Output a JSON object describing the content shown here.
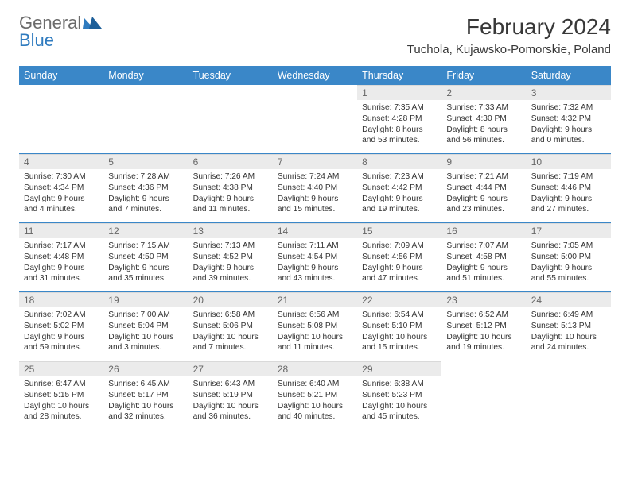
{
  "logo": {
    "general": "General",
    "blue": "Blue"
  },
  "title": "February 2024",
  "location": "Tuchola, Kujawsko-Pomorskie, Poland",
  "colors": {
    "header_bg": "#3a87c8",
    "header_text": "#ffffff",
    "daynum_bg": "#ebebeb",
    "daynum_text": "#666666",
    "body_text": "#333333",
    "logo_gray": "#6b6b6b",
    "logo_blue": "#2f7bbf",
    "border": "#3a87c8"
  },
  "day_names": [
    "Sunday",
    "Monday",
    "Tuesday",
    "Wednesday",
    "Thursday",
    "Friday",
    "Saturday"
  ],
  "weeks": [
    [
      null,
      null,
      null,
      null,
      {
        "n": "1",
        "sr": "7:35 AM",
        "ss": "4:28 PM",
        "dl": "8 hours and 53 minutes."
      },
      {
        "n": "2",
        "sr": "7:33 AM",
        "ss": "4:30 PM",
        "dl": "8 hours and 56 minutes."
      },
      {
        "n": "3",
        "sr": "7:32 AM",
        "ss": "4:32 PM",
        "dl": "9 hours and 0 minutes."
      }
    ],
    [
      {
        "n": "4",
        "sr": "7:30 AM",
        "ss": "4:34 PM",
        "dl": "9 hours and 4 minutes."
      },
      {
        "n": "5",
        "sr": "7:28 AM",
        "ss": "4:36 PM",
        "dl": "9 hours and 7 minutes."
      },
      {
        "n": "6",
        "sr": "7:26 AM",
        "ss": "4:38 PM",
        "dl": "9 hours and 11 minutes."
      },
      {
        "n": "7",
        "sr": "7:24 AM",
        "ss": "4:40 PM",
        "dl": "9 hours and 15 minutes."
      },
      {
        "n": "8",
        "sr": "7:23 AM",
        "ss": "4:42 PM",
        "dl": "9 hours and 19 minutes."
      },
      {
        "n": "9",
        "sr": "7:21 AM",
        "ss": "4:44 PM",
        "dl": "9 hours and 23 minutes."
      },
      {
        "n": "10",
        "sr": "7:19 AM",
        "ss": "4:46 PM",
        "dl": "9 hours and 27 minutes."
      }
    ],
    [
      {
        "n": "11",
        "sr": "7:17 AM",
        "ss": "4:48 PM",
        "dl": "9 hours and 31 minutes."
      },
      {
        "n": "12",
        "sr": "7:15 AM",
        "ss": "4:50 PM",
        "dl": "9 hours and 35 minutes."
      },
      {
        "n": "13",
        "sr": "7:13 AM",
        "ss": "4:52 PM",
        "dl": "9 hours and 39 minutes."
      },
      {
        "n": "14",
        "sr": "7:11 AM",
        "ss": "4:54 PM",
        "dl": "9 hours and 43 minutes."
      },
      {
        "n": "15",
        "sr": "7:09 AM",
        "ss": "4:56 PM",
        "dl": "9 hours and 47 minutes."
      },
      {
        "n": "16",
        "sr": "7:07 AM",
        "ss": "4:58 PM",
        "dl": "9 hours and 51 minutes."
      },
      {
        "n": "17",
        "sr": "7:05 AM",
        "ss": "5:00 PM",
        "dl": "9 hours and 55 minutes."
      }
    ],
    [
      {
        "n": "18",
        "sr": "7:02 AM",
        "ss": "5:02 PM",
        "dl": "9 hours and 59 minutes."
      },
      {
        "n": "19",
        "sr": "7:00 AM",
        "ss": "5:04 PM",
        "dl": "10 hours and 3 minutes."
      },
      {
        "n": "20",
        "sr": "6:58 AM",
        "ss": "5:06 PM",
        "dl": "10 hours and 7 minutes."
      },
      {
        "n": "21",
        "sr": "6:56 AM",
        "ss": "5:08 PM",
        "dl": "10 hours and 11 minutes."
      },
      {
        "n": "22",
        "sr": "6:54 AM",
        "ss": "5:10 PM",
        "dl": "10 hours and 15 minutes."
      },
      {
        "n": "23",
        "sr": "6:52 AM",
        "ss": "5:12 PM",
        "dl": "10 hours and 19 minutes."
      },
      {
        "n": "24",
        "sr": "6:49 AM",
        "ss": "5:13 PM",
        "dl": "10 hours and 24 minutes."
      }
    ],
    [
      {
        "n": "25",
        "sr": "6:47 AM",
        "ss": "5:15 PM",
        "dl": "10 hours and 28 minutes."
      },
      {
        "n": "26",
        "sr": "6:45 AM",
        "ss": "5:17 PM",
        "dl": "10 hours and 32 minutes."
      },
      {
        "n": "27",
        "sr": "6:43 AM",
        "ss": "5:19 PM",
        "dl": "10 hours and 36 minutes."
      },
      {
        "n": "28",
        "sr": "6:40 AM",
        "ss": "5:21 PM",
        "dl": "10 hours and 40 minutes."
      },
      {
        "n": "29",
        "sr": "6:38 AM",
        "ss": "5:23 PM",
        "dl": "10 hours and 45 minutes."
      },
      null,
      null
    ]
  ],
  "labels": {
    "sunrise": "Sunrise:",
    "sunset": "Sunset:",
    "daylight": "Daylight:"
  }
}
